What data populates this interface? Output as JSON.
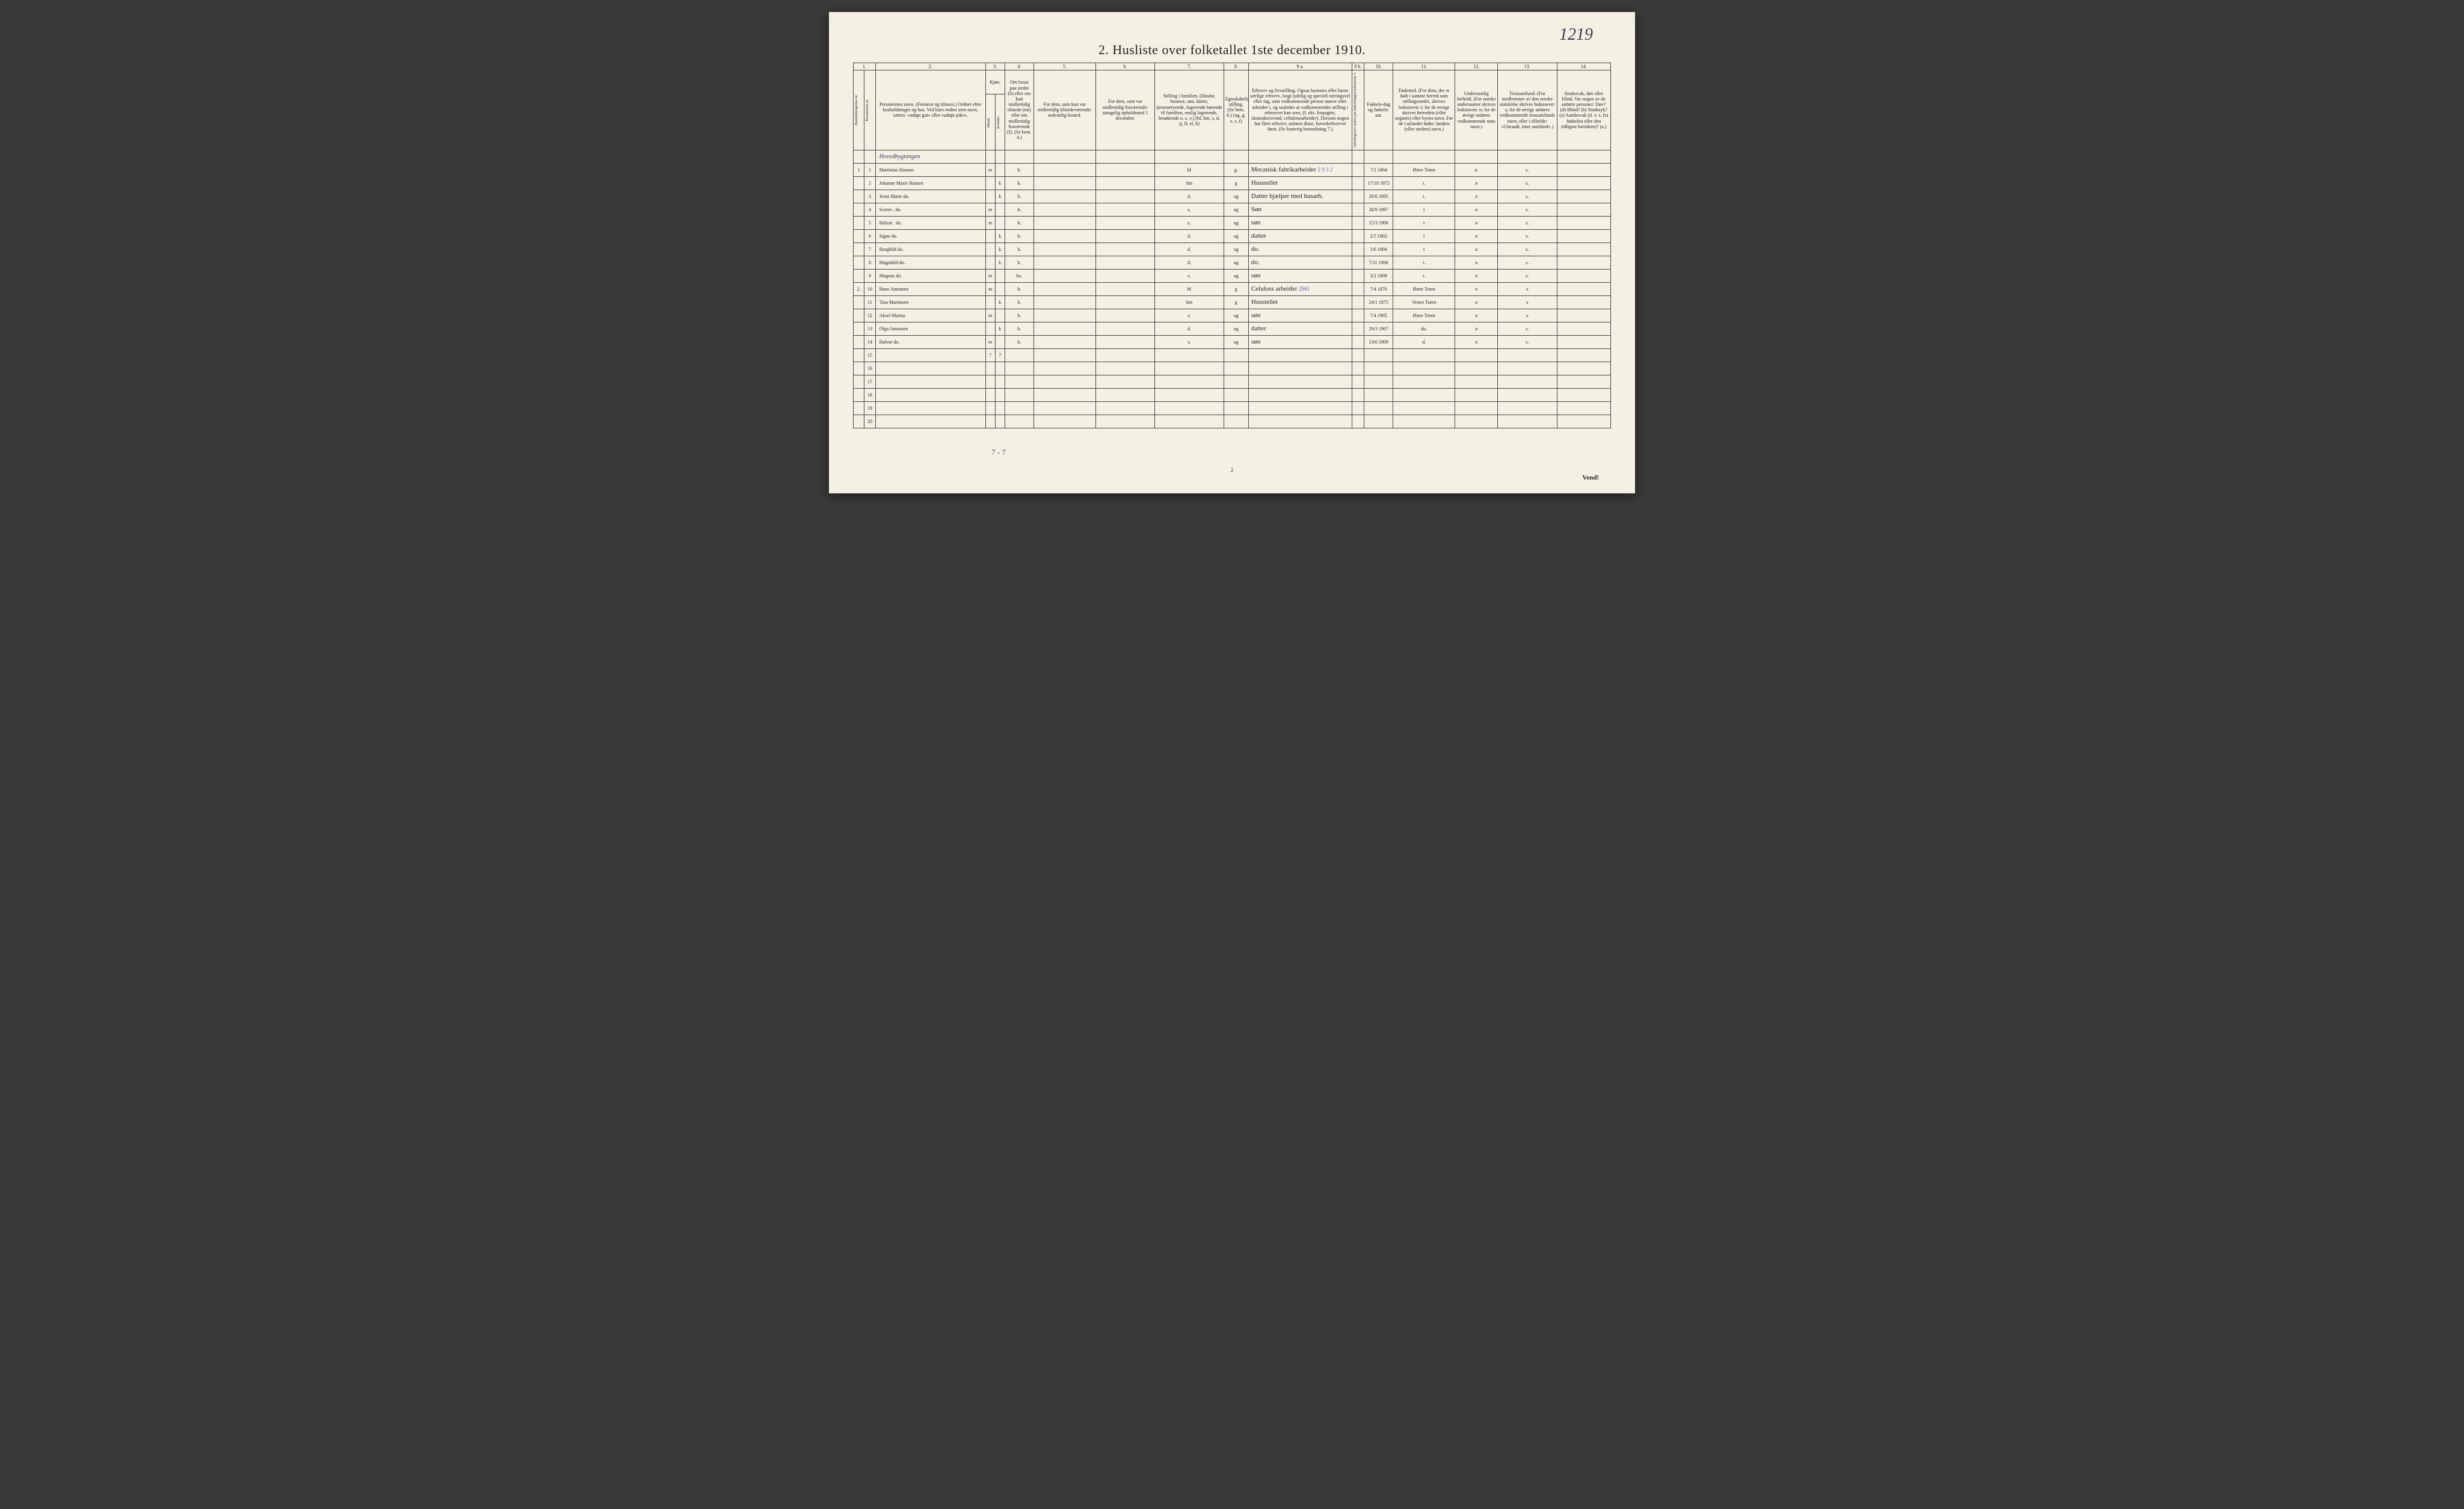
{
  "page_number_handwritten": "1219",
  "title": "2.  Husliste over folketallet 1ste december 1910.",
  "footer_page": "2",
  "footer_vend": "Vend!",
  "bottom_tally": "7 - 7",
  "column_numbers": [
    "1.",
    "2.",
    "3.",
    "4.",
    "5.",
    "6.",
    "7.",
    "8.",
    "9 a.",
    "9 b.",
    "10.",
    "11.",
    "12.",
    "13.",
    "14."
  ],
  "headers": {
    "col1a": "Husholdningernes nr.",
    "col1b": "Personernes nr.",
    "col2": "Personernes navn.\n(Fornavn og tilnavn.)\nOrdnet efter husholdninger og hus.\nVed barn endnu uten navn, sættes: «udøpt gut» eller «udøpt pike».",
    "col3": "Kjøn.",
    "col3a": "Mænd.",
    "col3b": "Kvinder.",
    "col3sub": "m. | k.",
    "col4": "Om bosat paa stedet (b) eller om kun midlertidig tilstede (mt) eller om midlertidig fraværende (f). (Se bem. 4.)",
    "col5": "For dem, som kun var midlertidig tilstedeværende:\nsedvanlig bosted.",
    "col6": "For dem, som var midlertidig fraværende:\nantagelig opholdssted 1 december.",
    "col7": "Stilling i familien.\n(Husfar, husmor, søn, datter, tjenestetyende, logerende hørende til familien, enslig logerende, besøkende o. s. v.)\n(hf, hm, s, d, tj, fl, el, b)",
    "col8": "Egteskabelig stilling.\n(Se bem. 6.)\n(ug, g, e, s, f)",
    "col9a": "Erhverv og livsstilling.\nOgsaa husmors eller barns særlige erhverv. Angi tydelig og specielt næringsvel eller fag, som vedkommende person utøver eller arbeider i, og saaledes at vedkommendes stilling i erhvervet kan sees, (f. eks. forpagter, skomakersvend, cellulosearbeider). Dersom nogen har flere erhverv, anføres disse, hovederhvervet først.\n(Se forøvrig bemerkning 7.)",
    "col9b": "Arbeidsgivere sættes paa fødselsdagen bokstaven: f.",
    "col10": "Fødsels-dag og fødsels-aar.",
    "col11": "Fødested.\n(For dem, der er født i samme herred som tællingsstedet, skrives bokstaven: t; for de øvrige skrives herredets (eller sognets) eller byens navn. For de i utlandet fødte: landets (eller stedets) navn.)",
    "col12": "Undersaatlig forhold.\n(For norske undersaatter skrives bokstaven: n; for de øvrige anføres vedkommende stats navn.)",
    "col13": "Trossamfund.\n(For medlemmer av den norske statskirke skrives bokstaven: s; for de øvrige anføres vedkommende trossamfunds navn, eller i tilfælde: «Uttraadt, intet samfund».)",
    "col14": "Sindssvak, døv eller blind.\nVar nogen av de anførte personer:\nDøv? (d)\nBlind? (b)\nSindssyk? (s)\nAandssvak (d. v. s. fra fødselen eller den tidligste barndom)? (a.)"
  },
  "subhead_row": "Hovedbygningen",
  "rows": [
    {
      "hh": "1",
      "pn": "1",
      "name": "Martinius Hansen",
      "m": "m",
      "k": "",
      "b": "b.",
      "c5": "",
      "c6": "",
      "fam": "hf",
      "eg": "g.",
      "occ": "Mecanisk fabrikarbeider",
      "occnote": "2 9 3 2",
      "dob": "7/2 1864",
      "birthplace": "Østre Toten",
      "nat": "n.",
      "rel": "s.",
      "c14": ""
    },
    {
      "hh": "",
      "pn": "2",
      "name": "Johanne Marie Hansen",
      "m": "",
      "k": "k",
      "b": "b.",
      "c5": "",
      "c6": "",
      "fam": "hm",
      "eg": "g",
      "occ": "Husstellet",
      "occnote": "",
      "dob": "17/10 1872",
      "birthplace": "t.",
      "nat": "n",
      "rel": "s.",
      "c14": ""
    },
    {
      "hh": "",
      "pn": "3",
      "name": "Jenni Marie   do.",
      "m": "",
      "k": "k",
      "b": "b.",
      "c5": "",
      "c6": "",
      "fam": "d.",
      "eg": "ug",
      "occ": "Datter hjælper med husarb.",
      "occnote": "",
      "dob": "20/6 1895",
      "birthplace": "t.",
      "nat": "n",
      "rel": "s.",
      "c14": ""
    },
    {
      "hh": "",
      "pn": "4",
      "name": "Sverre ,    do.",
      "m": "m",
      "k": "",
      "b": "b.",
      "c5": "",
      "c6": "",
      "fam": "s.",
      "eg": "ug",
      "occ": "Søn",
      "occnote": "",
      "dob": "28/9 1897",
      "birthplace": "t",
      "nat": "n",
      "rel": "s.",
      "c14": ""
    },
    {
      "hh": "",
      "pn": "5",
      "name": "Halvar .    do.",
      "m": "m",
      "k": "",
      "b": "b.",
      "c5": "",
      "c6": "",
      "fam": "s.",
      "eg": "ug",
      "occ": "søn",
      "occnote": "",
      "dob": "15/3 1900",
      "birthplace": "t",
      "nat": "n",
      "rel": "s.",
      "c14": ""
    },
    {
      "hh": "",
      "pn": "6",
      "name": "Signe      do.",
      "m": "",
      "k": "k",
      "b": "b.",
      "c5": "",
      "c6": "",
      "fam": "d.",
      "eg": "ug",
      "occ": "datter",
      "occnote": "",
      "dob": "2/5 1902",
      "birthplace": "t",
      "nat": "n",
      "rel": "s.",
      "c14": ""
    },
    {
      "hh": "",
      "pn": "7",
      "name": "Borghild   do.",
      "m": "",
      "k": "k",
      "b": "b.",
      "c5": "",
      "c6": "",
      "fam": "d.",
      "eg": "ug",
      "occ": "do.",
      "occnote": "",
      "dob": "3/6 1904",
      "birthplace": "t",
      "nat": "n",
      "rel": "s.",
      "c14": ""
    },
    {
      "hh": "",
      "pn": "8",
      "name": "Magnhild   do.",
      "m": "",
      "k": "k",
      "b": "b.",
      "c5": "",
      "c6": "",
      "fam": "d.",
      "eg": "ug",
      "occ": "do.",
      "occnote": "",
      "dob": "7/11 1906",
      "birthplace": "t.",
      "nat": "n",
      "rel": "s.",
      "c14": ""
    },
    {
      "hh": "",
      "pn": "9",
      "name": "Magnus    do.",
      "m": "m",
      "k": "",
      "b": "bo.",
      "c5": "",
      "c6": "",
      "fam": "s.",
      "eg": "ug",
      "occ": "søn",
      "occnote": "",
      "dob": "3/2 1909",
      "birthplace": "t.",
      "nat": "n",
      "rel": "s.",
      "c14": ""
    },
    {
      "hh": "2.",
      "pn": "10",
      "name": "Hans Antonsen",
      "m": "m",
      "k": "",
      "b": "b.",
      "c5": "",
      "c6": "",
      "fam": "hf",
      "eg": "g",
      "occ": "Celuloss arbeider",
      "occnote": "2961",
      "dob": "7/4 1876",
      "birthplace": "Østre Toten",
      "nat": "n",
      "rel": "s",
      "c14": ""
    },
    {
      "hh": "",
      "pn": "11",
      "name": "Tina Martinsen",
      "m": "",
      "k": "k",
      "b": "b.",
      "c5": "",
      "c6": "",
      "fam": "hm",
      "eg": "g",
      "occ": "Husstellet",
      "occnote": "",
      "dob": "24/1 1875",
      "birthplace": "Vestre Toten",
      "nat": "n",
      "rel": "s",
      "c14": ""
    },
    {
      "hh": "",
      "pn": "12",
      "name": "Aksel Marius",
      "m": "m",
      "k": "",
      "b": "b.",
      "c5": "",
      "c6": "",
      "fam": "s.",
      "eg": "ug",
      "occ": "søn",
      "occnote": "",
      "dob": "7/4 1905",
      "birthplace": "Østre Toten",
      "nat": "n",
      "rel": "s",
      "c14": ""
    },
    {
      "hh": "",
      "pn": "13",
      "name": "Olga   Antonsen",
      "m": "",
      "k": "k",
      "b": "b.",
      "c5": "",
      "c6": "",
      "fam": "d.",
      "eg": "ug",
      "occ": "datter",
      "occnote": "",
      "dob": "29/3 1907",
      "birthplace": "do.",
      "nat": "n",
      "rel": "s.",
      "c14": ""
    },
    {
      "hh": "",
      "pn": "14",
      "name": "Halvar    do.",
      "m": "m",
      "k": "",
      "b": "b.",
      "c5": "",
      "c6": "",
      "fam": "s.",
      "eg": "ug",
      "occ": "søn",
      "occnote": "",
      "dob": "13/6 1909",
      "birthplace": "d.",
      "nat": "n",
      "rel": "s.",
      "c14": ""
    }
  ],
  "tally_row": {
    "pn": "15",
    "m": "7",
    "k": "7"
  },
  "empty_rows": [
    "16",
    "17",
    "18",
    "19",
    "20"
  ]
}
